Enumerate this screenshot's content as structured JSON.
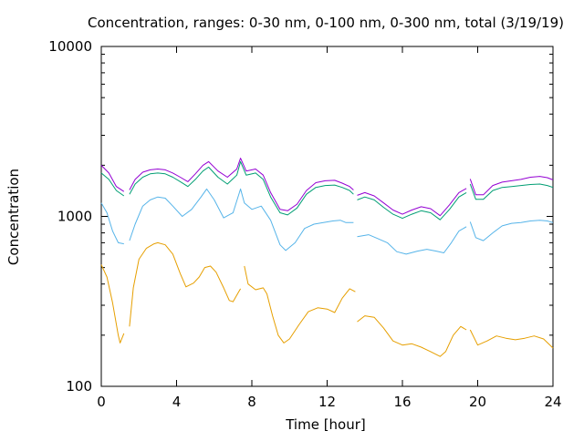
{
  "chart_data": {
    "type": "line",
    "title": "Concentration, ranges: 0-30 nm, 0-100 nm, 0-300 nm, total (3/19/19)",
    "xlabel": "Time [hour]",
    "ylabel": "Concentration",
    "xlim": [
      0,
      24
    ],
    "ylim": [
      100,
      10000
    ],
    "yscale": "log",
    "grid": false,
    "legend": "none",
    "x_ticks": [
      0,
      4,
      8,
      12,
      16,
      20,
      24
    ],
    "y_ticks": [
      100,
      1000,
      10000
    ],
    "colors": {
      "range_0_30": "#e69f00",
      "range_0_100": "#56b4e9",
      "range_0_300": "#009e73",
      "total": "#9400d3"
    },
    "series": [
      {
        "color": "#e69f00",
        "segments": [
          [
            [
              0,
              520
            ],
            [
              0.3,
              440
            ],
            [
              0.6,
              310
            ],
            [
              0.9,
              200
            ],
            [
              1.0,
              180
            ],
            [
              1.2,
              205
            ]
          ],
          [
            [
              1.5,
              225
            ],
            [
              1.7,
              380
            ],
            [
              2.0,
              560
            ],
            [
              2.4,
              650
            ],
            [
              2.8,
              690
            ],
            [
              3.0,
              700
            ],
            [
              3.4,
              680
            ],
            [
              3.8,
              600
            ],
            [
              4.2,
              460
            ],
            [
              4.5,
              385
            ],
            [
              4.9,
              405
            ],
            [
              5.2,
              440
            ],
            [
              5.5,
              500
            ],
            [
              5.8,
              510
            ],
            [
              6.1,
              470
            ],
            [
              6.5,
              380
            ],
            [
              6.8,
              320
            ],
            [
              7.0,
              315
            ],
            [
              7.3,
              360
            ],
            [
              7.4,
              375
            ]
          ],
          [
            [
              7.6,
              510
            ],
            [
              7.8,
              400
            ],
            [
              8.2,
              370
            ],
            [
              8.6,
              380
            ],
            [
              8.8,
              350
            ],
            [
              9.1,
              260
            ],
            [
              9.4,
              200
            ],
            [
              9.7,
              180
            ],
            [
              10.0,
              190
            ],
            [
              10.5,
              230
            ],
            [
              11.0,
              275
            ],
            [
              11.5,
              290
            ],
            [
              12.0,
              285
            ],
            [
              12.4,
              272
            ],
            [
              12.8,
              330
            ],
            [
              13.2,
              375
            ],
            [
              13.5,
              360
            ]
          ],
          [
            [
              13.6,
              240
            ],
            [
              14.0,
              260
            ],
            [
              14.5,
              255
            ],
            [
              15.0,
              220
            ],
            [
              15.5,
              185
            ],
            [
              16.0,
              175
            ],
            [
              16.5,
              178
            ],
            [
              17.0,
              170
            ],
            [
              17.5,
              160
            ],
            [
              18.0,
              150
            ],
            [
              18.3,
              160
            ],
            [
              18.7,
              200
            ],
            [
              19.1,
              225
            ],
            [
              19.4,
              215
            ]
          ],
          [
            [
              19.6,
              215
            ],
            [
              20.0,
              175
            ],
            [
              20.5,
              185
            ],
            [
              21.0,
              198
            ],
            [
              21.5,
              192
            ],
            [
              22.0,
              188
            ],
            [
              22.5,
              192
            ],
            [
              23.0,
              198
            ],
            [
              23.5,
              190
            ],
            [
              24.0,
              168
            ]
          ]
        ]
      },
      {
        "color": "#56b4e9",
        "segments": [
          [
            [
              0,
              1200
            ],
            [
              0.3,
              1050
            ],
            [
              0.6,
              820
            ],
            [
              0.9,
              700
            ],
            [
              1.2,
              690
            ]
          ],
          [
            [
              1.5,
              720
            ],
            [
              1.8,
              900
            ],
            [
              2.2,
              1150
            ],
            [
              2.6,
              1250
            ],
            [
              3.0,
              1300
            ],
            [
              3.4,
              1280
            ],
            [
              3.8,
              1150
            ],
            [
              4.3,
              1000
            ],
            [
              4.8,
              1100
            ],
            [
              5.3,
              1300
            ],
            [
              5.6,
              1450
            ],
            [
              6.0,
              1250
            ],
            [
              6.5,
              980
            ],
            [
              7.0,
              1050
            ],
            [
              7.4,
              1450
            ],
            [
              7.6,
              1200
            ],
            [
              8.0,
              1100
            ],
            [
              8.5,
              1150
            ],
            [
              9.0,
              950
            ],
            [
              9.5,
              680
            ],
            [
              9.8,
              630
            ],
            [
              10.3,
              700
            ],
            [
              10.8,
              850
            ],
            [
              11.3,
              900
            ],
            [
              11.8,
              920
            ],
            [
              12.3,
              940
            ],
            [
              12.7,
              950
            ],
            [
              13.0,
              920
            ],
            [
              13.4,
              920
            ]
          ],
          [
            [
              13.6,
              760
            ],
            [
              14.2,
              780
            ],
            [
              14.7,
              740
            ],
            [
              15.2,
              700
            ],
            [
              15.7,
              620
            ],
            [
              16.2,
              600
            ],
            [
              16.8,
              625
            ],
            [
              17.3,
              640
            ],
            [
              17.8,
              625
            ],
            [
              18.2,
              610
            ],
            [
              18.6,
              700
            ],
            [
              19.0,
              820
            ],
            [
              19.4,
              870
            ]
          ],
          [
            [
              19.6,
              930
            ],
            [
              19.9,
              750
            ],
            [
              20.3,
              720
            ],
            [
              20.8,
              800
            ],
            [
              21.3,
              880
            ],
            [
              21.8,
              910
            ],
            [
              22.3,
              920
            ],
            [
              22.8,
              940
            ],
            [
              23.3,
              950
            ],
            [
              23.7,
              940
            ],
            [
              24.0,
              920
            ]
          ]
        ]
      },
      {
        "color": "#009e73",
        "segments": [
          [
            [
              0,
              1800
            ],
            [
              0.4,
              1650
            ],
            [
              0.8,
              1420
            ],
            [
              1.2,
              1320
            ]
          ],
          [
            [
              1.5,
              1350
            ],
            [
              1.8,
              1550
            ],
            [
              2.2,
              1700
            ],
            [
              2.6,
              1780
            ],
            [
              3.0,
              1800
            ],
            [
              3.4,
              1780
            ],
            [
              3.8,
              1700
            ],
            [
              4.2,
              1600
            ],
            [
              4.6,
              1500
            ],
            [
              5.0,
              1650
            ],
            [
              5.4,
              1850
            ],
            [
              5.7,
              1950
            ],
            [
              6.2,
              1700
            ],
            [
              6.7,
              1550
            ],
            [
              7.2,
              1750
            ],
            [
              7.4,
              2100
            ],
            [
              7.7,
              1750
            ],
            [
              8.2,
              1800
            ],
            [
              8.6,
              1650
            ],
            [
              9.0,
              1300
            ],
            [
              9.5,
              1050
            ],
            [
              9.9,
              1020
            ],
            [
              10.4,
              1120
            ],
            [
              10.9,
              1350
            ],
            [
              11.4,
              1480
            ],
            [
              11.9,
              1520
            ],
            [
              12.4,
              1530
            ],
            [
              12.8,
              1480
            ],
            [
              13.2,
              1420
            ],
            [
              13.4,
              1350
            ]
          ],
          [
            [
              13.6,
              1250
            ],
            [
              14.0,
              1300
            ],
            [
              14.5,
              1250
            ],
            [
              15.0,
              1130
            ],
            [
              15.5,
              1030
            ],
            [
              16.0,
              975
            ],
            [
              16.5,
              1030
            ],
            [
              17.0,
              1080
            ],
            [
              17.5,
              1050
            ],
            [
              18.0,
              955
            ],
            [
              18.5,
              1100
            ],
            [
              19.0,
              1300
            ],
            [
              19.4,
              1380
            ]
          ],
          [
            [
              19.6,
              1550
            ],
            [
              19.9,
              1260
            ],
            [
              20.3,
              1260
            ],
            [
              20.8,
              1420
            ],
            [
              21.3,
              1480
            ],
            [
              21.8,
              1500
            ],
            [
              22.3,
              1520
            ],
            [
              22.8,
              1540
            ],
            [
              23.3,
              1550
            ],
            [
              23.7,
              1520
            ],
            [
              24.0,
              1480
            ]
          ]
        ]
      },
      {
        "color": "#9400d3",
        "segments": [
          [
            [
              0,
              2000
            ],
            [
              0.4,
              1800
            ],
            [
              0.8,
              1500
            ],
            [
              1.2,
              1400
            ]
          ],
          [
            [
              1.5,
              1430
            ],
            [
              1.8,
              1650
            ],
            [
              2.2,
              1820
            ],
            [
              2.6,
              1880
            ],
            [
              3.0,
              1900
            ],
            [
              3.4,
              1880
            ],
            [
              3.8,
              1800
            ],
            [
              4.2,
              1700
            ],
            [
              4.6,
              1600
            ],
            [
              5.0,
              1780
            ],
            [
              5.4,
              2000
            ],
            [
              5.7,
              2100
            ],
            [
              6.2,
              1850
            ],
            [
              6.7,
              1700
            ],
            [
              7.2,
              1900
            ],
            [
              7.4,
              2200
            ],
            [
              7.7,
              1850
            ],
            [
              8.2,
              1900
            ],
            [
              8.6,
              1750
            ],
            [
              9.0,
              1380
            ],
            [
              9.5,
              1100
            ],
            [
              9.9,
              1080
            ],
            [
              10.4,
              1180
            ],
            [
              10.9,
              1420
            ],
            [
              11.4,
              1580
            ],
            [
              11.9,
              1620
            ],
            [
              12.4,
              1630
            ],
            [
              12.8,
              1570
            ],
            [
              13.2,
              1500
            ],
            [
              13.4,
              1430
            ]
          ],
          [
            [
              13.6,
              1330
            ],
            [
              14.0,
              1380
            ],
            [
              14.5,
              1320
            ],
            [
              15.0,
              1200
            ],
            [
              15.5,
              1090
            ],
            [
              16.0,
              1030
            ],
            [
              16.5,
              1090
            ],
            [
              17.0,
              1140
            ],
            [
              17.5,
              1110
            ],
            [
              18.0,
              1010
            ],
            [
              18.5,
              1170
            ],
            [
              19.0,
              1380
            ],
            [
              19.4,
              1460
            ]
          ],
          [
            [
              19.6,
              1660
            ],
            [
              19.9,
              1340
            ],
            [
              20.3,
              1340
            ],
            [
              20.8,
              1520
            ],
            [
              21.3,
              1590
            ],
            [
              21.8,
              1620
            ],
            [
              22.3,
              1650
            ],
            [
              22.8,
              1700
            ],
            [
              23.3,
              1720
            ],
            [
              23.7,
              1690
            ],
            [
              24.0,
              1640
            ]
          ]
        ]
      }
    ]
  }
}
